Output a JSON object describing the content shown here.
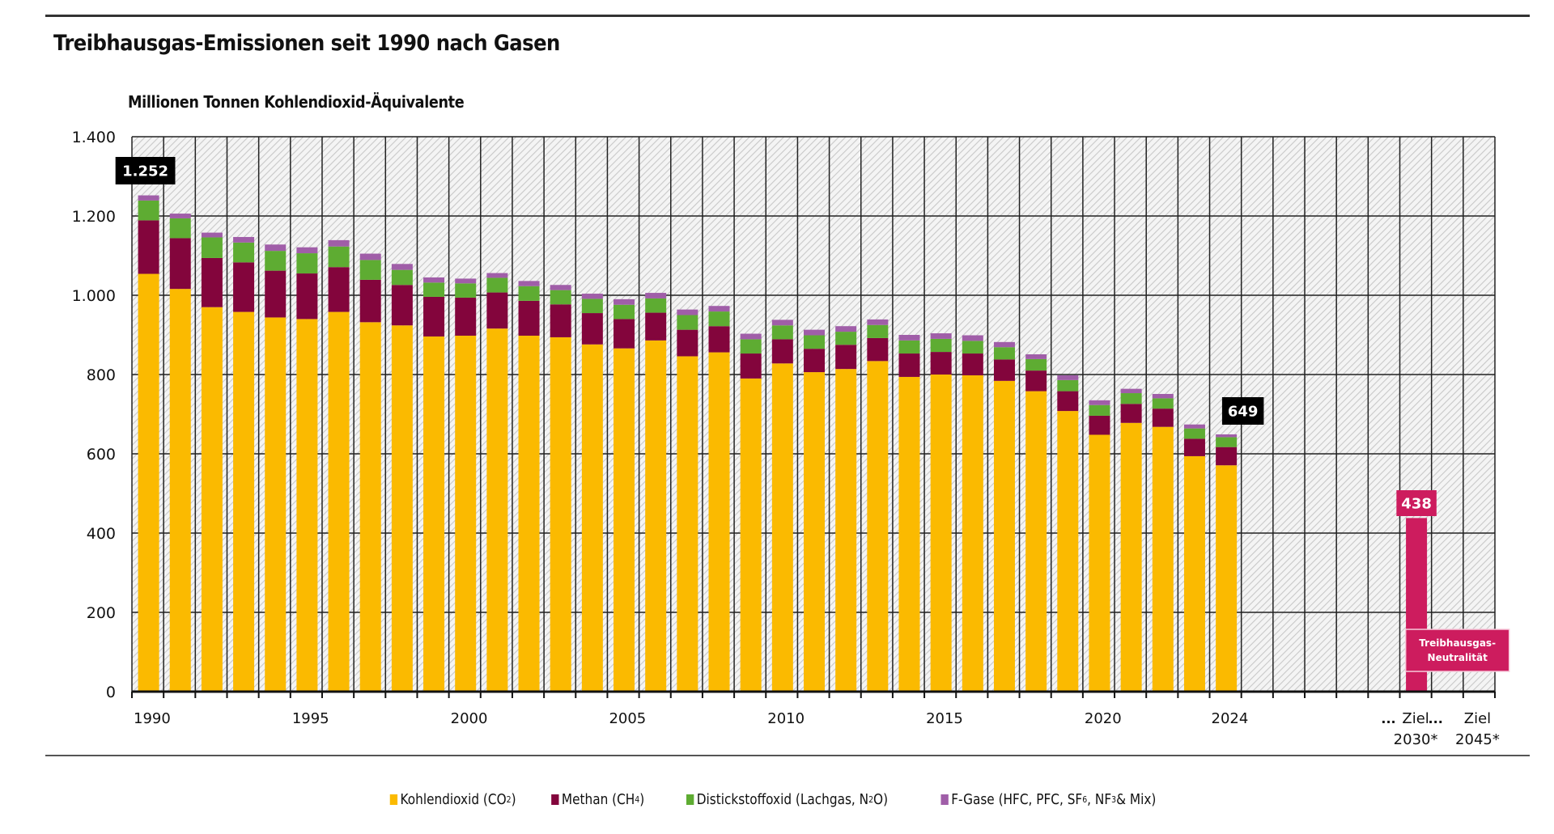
{
  "title": "Treibhausgas-Emissionen seit 1990 nach Gasen",
  "unit_label": "Millionen Tonnen Kohlendioxid-Äquivalente",
  "chart_data": {
    "type": "bar",
    "stacked": true,
    "title": "Treibhausgas-Emissionen seit 1990 nach Gasen",
    "ylabel": "Millionen Tonnen Kohlendioxid-Äquivalente",
    "xlabel": "",
    "ylim": [
      0,
      1400
    ],
    "yticks": [
      0,
      200,
      400,
      600,
      800,
      1000,
      1200,
      1400
    ],
    "ytick_labels": [
      "0",
      "200",
      "400",
      "600",
      "800",
      "1.000",
      "1.200",
      "1.400"
    ],
    "grid": true,
    "legend_position": "bottom",
    "categories": [
      "1990",
      "1991",
      "1992",
      "1993",
      "1994",
      "1995",
      "1996",
      "1997",
      "1998",
      "1999",
      "2000",
      "2001",
      "2002",
      "2003",
      "2004",
      "2005",
      "2006",
      "2007",
      "2008",
      "2009",
      "2010",
      "2011",
      "2012",
      "2013",
      "2014",
      "2015",
      "2016",
      "2017",
      "2018",
      "2019",
      "2020",
      "2021",
      "2022",
      "2023",
      "2024"
    ],
    "xtick_labels": [
      {
        "index": 0,
        "label": "1990"
      },
      {
        "index": 5,
        "label": "1995"
      },
      {
        "index": 10,
        "label": "2000"
      },
      {
        "index": 15,
        "label": "2005"
      },
      {
        "index": 20,
        "label": "2010"
      },
      {
        "index": 25,
        "label": "2015"
      },
      {
        "index": 30,
        "label": "2020"
      },
      {
        "index": 34,
        "label": "2024"
      }
    ],
    "series": [
      {
        "name": "Kohlendioxid (CO2)",
        "color": "#fbba00",
        "values": [
          1054,
          1016,
          970,
          958,
          944,
          940,
          958,
          932,
          924,
          896,
          898,
          916,
          898,
          894,
          876,
          866,
          886,
          846,
          856,
          790,
          828,
          806,
          814,
          834,
          794,
          800,
          798,
          784,
          758,
          708,
          648,
          678,
          668,
          594,
          571
        ]
      },
      {
        "name": "Methan (CH4)",
        "color": "#83053c",
        "values": [
          135,
          128,
          124,
          125,
          118,
          115,
          113,
          107,
          102,
          100,
          96,
          91,
          88,
          83,
          79,
          74,
          70,
          67,
          66,
          63,
          61,
          59,
          61,
          58,
          59,
          57,
          55,
          54,
          52,
          50,
          48,
          48,
          46,
          44,
          46
        ]
      },
      {
        "name": "Distickstoffoxid (Lachgas, N2O)",
        "color": "#5eac32",
        "values": [
          50,
          50,
          52,
          50,
          50,
          51,
          52,
          50,
          38,
          36,
          36,
          37,
          37,
          36,
          36,
          36,
          36,
          37,
          37,
          36,
          35,
          34,
          33,
          33,
          33,
          33,
          32,
          31,
          29,
          28,
          27,
          27,
          26,
          26,
          25
        ]
      },
      {
        "name": "F-Gase (HFC, PFC, SF6, NF3 & Mix)",
        "color": "#a05ea8",
        "values": [
          13,
          12,
          12,
          14,
          16,
          15,
          16,
          16,
          15,
          13,
          12,
          12,
          13,
          13,
          13,
          14,
          14,
          14,
          14,
          14,
          14,
          14,
          14,
          14,
          14,
          14,
          14,
          13,
          12,
          12,
          12,
          11,
          11,
          10,
          7
        ]
      }
    ],
    "totals_labels": [
      {
        "category": "1990",
        "label": "1.252",
        "value": 1252
      },
      {
        "category": "2024",
        "label": "649",
        "value": 649
      }
    ],
    "targets": [
      {
        "label_line1": "Ziel",
        "label_line2": "2030*",
        "value": 438,
        "value_label": "438",
        "color": "#cd1c5e"
      },
      {
        "label_line1": "Ziel",
        "label_line2": "2045*",
        "value": 0,
        "annotation": "Treibhausgas-Neutralität",
        "color": "#cd1c5e"
      }
    ],
    "ellipsis_label": "..."
  },
  "legend": [
    {
      "label": "Kohlendioxid (CO",
      "sub": "2",
      "tail": ")",
      "color": "#fbba00"
    },
    {
      "label": "Methan (CH",
      "sub": "4",
      "tail": ")",
      "color": "#83053c"
    },
    {
      "label": "Distickstoffoxid (Lachgas, N",
      "sub": "2",
      "tail": "O)",
      "color": "#5eac32"
    },
    {
      "label": "F-Gase (HFC, PFC, SF",
      "sub": "6",
      "tail": ", NF",
      "sub2": "3",
      "tail2": " & Mix)",
      "color": "#a05ea8"
    }
  ]
}
